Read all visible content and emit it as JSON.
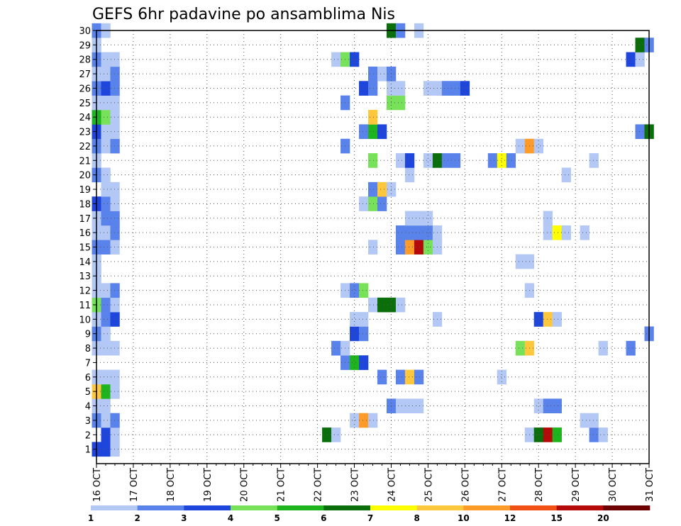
{
  "chart_data": {
    "type": "heatmap",
    "title": "GEFS 6hr padavine po ansamblima Nis",
    "xlabel": "",
    "ylabel": "",
    "x_tick_labels": [
      "16 OCT",
      "17 OCT",
      "18 OCT",
      "19 OCT",
      "20 OCT",
      "21 OCT",
      "22 OCT",
      "23 OCT",
      "24 OCT",
      "25 OCT",
      "26 OCT",
      "27 OCT",
      "28 OCT",
      "29 OCT",
      "30 OCT",
      "31 OCT"
    ],
    "y_tick_labels": [
      "1",
      "2",
      "3",
      "4",
      "5",
      "6",
      "7",
      "8",
      "9",
      "10",
      "11",
      "12",
      "13",
      "14",
      "15",
      "16",
      "17",
      "18",
      "19",
      "20",
      "21",
      "22",
      "23",
      "24",
      "25",
      "26",
      "27",
      "28",
      "29",
      "30"
    ],
    "x_range_steps": [
      0,
      60
    ],
    "steps_per_day": 4,
    "y_range_members": [
      0,
      30
    ],
    "grid": true,
    "legend_position": "bottom",
    "legend_levels": [
      "1",
      "2",
      "3",
      "4",
      "5",
      "6",
      "7",
      "8",
      "10",
      "12",
      "15",
      "20"
    ],
    "legend_colors": [
      "#b4c8f5",
      "#5a82eb",
      "#1e46dc",
      "#78e15a",
      "#1eb41e",
      "#0a6e0a",
      "#ffff00",
      "#ffc83c",
      "#ff9b28",
      "#f05014",
      "#b40a0a",
      "#6e0000"
    ],
    "cells": [
      [
        1,
        0,
        2
      ],
      [
        1,
        1,
        2
      ],
      [
        1,
        2,
        0
      ],
      [
        2,
        1,
        2
      ],
      [
        2,
        2,
        0
      ],
      [
        2,
        25,
        5
      ],
      [
        2,
        26,
        0
      ],
      [
        2,
        47,
        0
      ],
      [
        2,
        48,
        5
      ],
      [
        2,
        49,
        10
      ],
      [
        2,
        50,
        4
      ],
      [
        2,
        54,
        1
      ],
      [
        2,
        55,
        0
      ],
      [
        3,
        0,
        1
      ],
      [
        3,
        1,
        0
      ],
      [
        3,
        2,
        1
      ],
      [
        3,
        28,
        0
      ],
      [
        3,
        29,
        8
      ],
      [
        3,
        30,
        0
      ],
      [
        3,
        53,
        0
      ],
      [
        3,
        54,
        0
      ],
      [
        4,
        0,
        0
      ],
      [
        4,
        1,
        0
      ],
      [
        4,
        32,
        1
      ],
      [
        4,
        33,
        0
      ],
      [
        4,
        34,
        0
      ],
      [
        4,
        35,
        0
      ],
      [
        4,
        48,
        0
      ],
      [
        4,
        49,
        1
      ],
      [
        4,
        50,
        1
      ],
      [
        5,
        0,
        7
      ],
      [
        5,
        1,
        4
      ],
      [
        5,
        2,
        0
      ],
      [
        6,
        0,
        0
      ],
      [
        6,
        1,
        0
      ],
      [
        6,
        2,
        0
      ],
      [
        6,
        31,
        1
      ],
      [
        6,
        33,
        1
      ],
      [
        6,
        34,
        7
      ],
      [
        6,
        35,
        1
      ],
      [
        6,
        44,
        0
      ],
      [
        7,
        27,
        1
      ],
      [
        7,
        28,
        4
      ],
      [
        7,
        29,
        2
      ],
      [
        8,
        0,
        0
      ],
      [
        8,
        1,
        0
      ],
      [
        8,
        2,
        0
      ],
      [
        8,
        26,
        1
      ],
      [
        8,
        27,
        0
      ],
      [
        8,
        46,
        3
      ],
      [
        8,
        47,
        7
      ],
      [
        8,
        55,
        0
      ],
      [
        8,
        58,
        1
      ],
      [
        9,
        0,
        1
      ],
      [
        9,
        1,
        0
      ],
      [
        9,
        28,
        2
      ],
      [
        9,
        29,
        1
      ],
      [
        9,
        60,
        1
      ],
      [
        10,
        0,
        0
      ],
      [
        10,
        1,
        1
      ],
      [
        10,
        2,
        2
      ],
      [
        10,
        28,
        0
      ],
      [
        10,
        29,
        0
      ],
      [
        10,
        37,
        0
      ],
      [
        10,
        48,
        2
      ],
      [
        10,
        49,
        7
      ],
      [
        10,
        50,
        0
      ],
      [
        11,
        0,
        3
      ],
      [
        11,
        1,
        1
      ],
      [
        11,
        2,
        0
      ],
      [
        11,
        30,
        0
      ],
      [
        11,
        31,
        5
      ],
      [
        11,
        32,
        5
      ],
      [
        11,
        33,
        0
      ],
      [
        12,
        0,
        0
      ],
      [
        12,
        1,
        0
      ],
      [
        12,
        2,
        1
      ],
      [
        12,
        27,
        0
      ],
      [
        12,
        28,
        1
      ],
      [
        12,
        29,
        3
      ],
      [
        12,
        47,
        0
      ],
      [
        13,
        0,
        0
      ],
      [
        14,
        0,
        0
      ],
      [
        14,
        46,
        0
      ],
      [
        14,
        47,
        0
      ],
      [
        15,
        0,
        1
      ],
      [
        15,
        1,
        1
      ],
      [
        15,
        2,
        0
      ],
      [
        15,
        30,
        0
      ],
      [
        15,
        33,
        1
      ],
      [
        15,
        34,
        8
      ],
      [
        15,
        35,
        10
      ],
      [
        15,
        36,
        3
      ],
      [
        15,
        37,
        0
      ],
      [
        16,
        0,
        0
      ],
      [
        16,
        1,
        0
      ],
      [
        16,
        2,
        1
      ],
      [
        16,
        33,
        1
      ],
      [
        16,
        34,
        1
      ],
      [
        16,
        35,
        1
      ],
      [
        16,
        36,
        1
      ],
      [
        16,
        37,
        0
      ],
      [
        16,
        49,
        0
      ],
      [
        16,
        50,
        6
      ],
      [
        16,
        51,
        0
      ],
      [
        16,
        53,
        0
      ],
      [
        17,
        0,
        0
      ],
      [
        17,
        1,
        1
      ],
      [
        17,
        2,
        1
      ],
      [
        17,
        34,
        0
      ],
      [
        17,
        35,
        0
      ],
      [
        17,
        36,
        0
      ],
      [
        17,
        49,
        0
      ],
      [
        18,
        0,
        2
      ],
      [
        18,
        1,
        1
      ],
      [
        18,
        2,
        0
      ],
      [
        18,
        29,
        0
      ],
      [
        18,
        30,
        3
      ],
      [
        18,
        31,
        1
      ],
      [
        19,
        1,
        0
      ],
      [
        19,
        2,
        0
      ],
      [
        19,
        30,
        1
      ],
      [
        19,
        31,
        7
      ],
      [
        19,
        32,
        0
      ],
      [
        20,
        0,
        1
      ],
      [
        20,
        1,
        0
      ],
      [
        20,
        34,
        0
      ],
      [
        20,
        51,
        0
      ],
      [
        21,
        0,
        0
      ],
      [
        21,
        30,
        3
      ],
      [
        21,
        33,
        0
      ],
      [
        21,
        34,
        2
      ],
      [
        21,
        36,
        0
      ],
      [
        21,
        37,
        5
      ],
      [
        21,
        38,
        1
      ],
      [
        21,
        39,
        1
      ],
      [
        21,
        43,
        1
      ],
      [
        21,
        44,
        6
      ],
      [
        21,
        45,
        1
      ],
      [
        21,
        54,
        0
      ],
      [
        22,
        0,
        1
      ],
      [
        22,
        1,
        0
      ],
      [
        22,
        2,
        1
      ],
      [
        22,
        27,
        1
      ],
      [
        22,
        46,
        0
      ],
      [
        22,
        47,
        8
      ],
      [
        22,
        48,
        0
      ],
      [
        23,
        0,
        2
      ],
      [
        23,
        1,
        0
      ],
      [
        23,
        2,
        0
      ],
      [
        23,
        29,
        1
      ],
      [
        23,
        30,
        4
      ],
      [
        23,
        31,
        2
      ],
      [
        23,
        59,
        1
      ],
      [
        23,
        60,
        5
      ],
      [
        24,
        0,
        4
      ],
      [
        24,
        1,
        3
      ],
      [
        24,
        2,
        0
      ],
      [
        24,
        30,
        7
      ],
      [
        25,
        0,
        0
      ],
      [
        25,
        1,
        0
      ],
      [
        25,
        2,
        0
      ],
      [
        25,
        27,
        1
      ],
      [
        25,
        32,
        3
      ],
      [
        25,
        33,
        3
      ],
      [
        26,
        0,
        1
      ],
      [
        26,
        1,
        2
      ],
      [
        26,
        2,
        1
      ],
      [
        26,
        29,
        2
      ],
      [
        26,
        30,
        1
      ],
      [
        26,
        32,
        0
      ],
      [
        26,
        33,
        0
      ],
      [
        26,
        36,
        0
      ],
      [
        26,
        37,
        0
      ],
      [
        26,
        38,
        1
      ],
      [
        26,
        39,
        1
      ],
      [
        26,
        40,
        2
      ],
      [
        27,
        0,
        0
      ],
      [
        27,
        1,
        0
      ],
      [
        27,
        2,
        1
      ],
      [
        27,
        30,
        1
      ],
      [
        27,
        31,
        0
      ],
      [
        27,
        32,
        1
      ],
      [
        28,
        0,
        1
      ],
      [
        28,
        1,
        0
      ],
      [
        28,
        2,
        0
      ],
      [
        28,
        26,
        0
      ],
      [
        28,
        27,
        3
      ],
      [
        28,
        28,
        2
      ],
      [
        28,
        58,
        2
      ],
      [
        28,
        59,
        0
      ],
      [
        29,
        0,
        0
      ],
      [
        29,
        59,
        5
      ],
      [
        29,
        60,
        1
      ],
      [
        30,
        0,
        1
      ],
      [
        30,
        1,
        0
      ],
      [
        30,
        32,
        5
      ],
      [
        30,
        33,
        1
      ],
      [
        30,
        35,
        0
      ]
    ]
  }
}
